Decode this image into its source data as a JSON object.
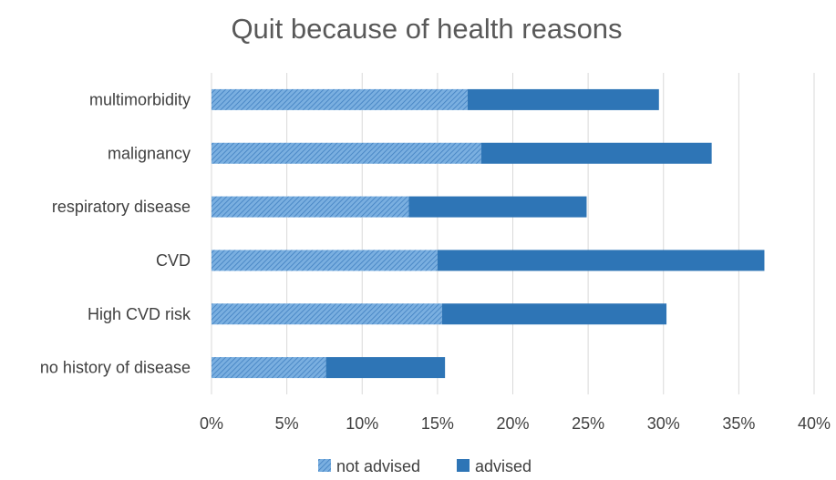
{
  "chart_data": {
    "type": "bar",
    "orientation": "horizontal",
    "stacked": true,
    "title": "Quit because of health reasons",
    "categories": [
      "multimorbidity",
      "malignancy",
      "respiratory disease",
      "CVD",
      "High CVD risk",
      "no history of disease"
    ],
    "series": [
      {
        "name": "not advised",
        "values": [
          17.0,
          17.9,
          13.1,
          15.0,
          15.3,
          7.6
        ],
        "color": "#5b9bd5",
        "pattern": "hatched"
      },
      {
        "name": "advised",
        "values": [
          12.7,
          15.3,
          11.8,
          21.7,
          14.9,
          7.9
        ],
        "color": "#2e75b6",
        "pattern": "solid"
      }
    ],
    "xlim": [
      0,
      40
    ],
    "xticks": [
      "0%",
      "5%",
      "10%",
      "15%",
      "20%",
      "25%",
      "30%",
      "35%",
      "40%"
    ],
    "xlabel": "",
    "ylabel": "",
    "grid": true,
    "legend": "bottom"
  }
}
